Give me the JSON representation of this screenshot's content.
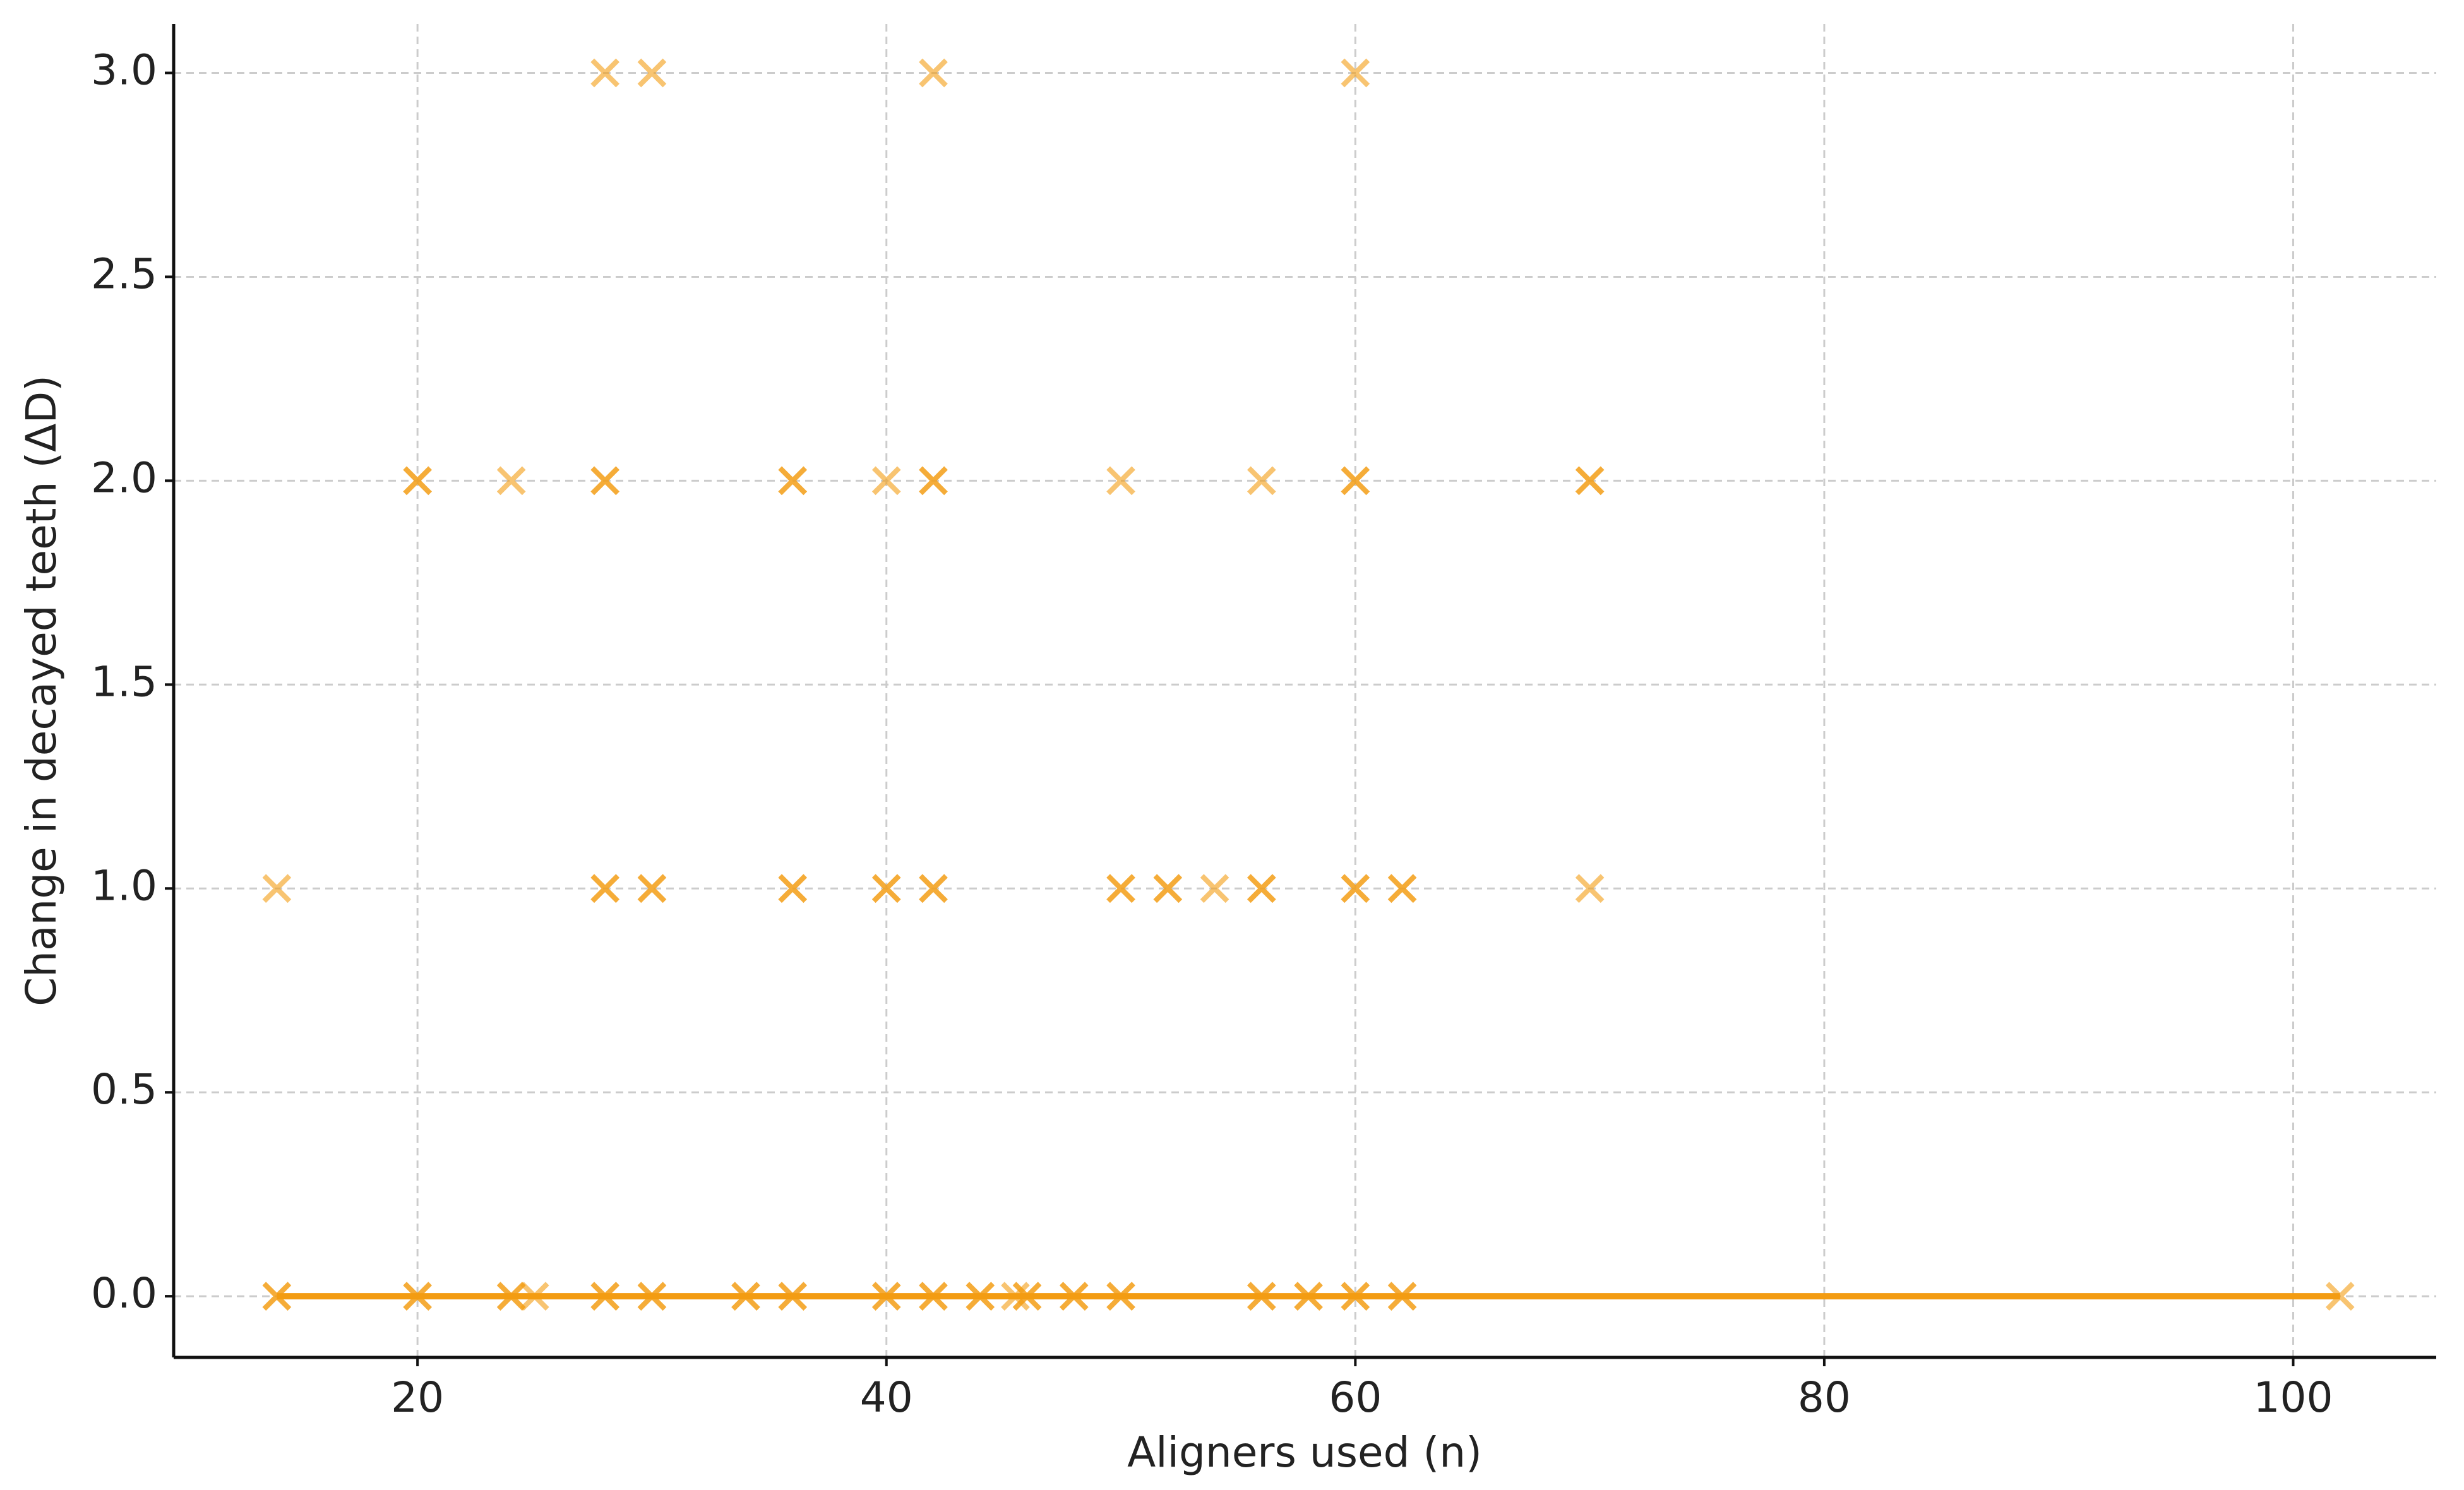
{
  "chart_data": {
    "type": "scatter",
    "xlabel": "Aligners used (n)",
    "ylabel": "Change in decayed teeth (ΔD)",
    "marker": "x",
    "color": "#f39c12",
    "alpha": 0.6,
    "x": [
      28,
      30,
      42,
      60,
      20,
      20,
      24,
      28,
      28,
      36,
      36,
      40,
      42,
      42,
      50,
      56,
      60,
      60,
      70,
      70,
      14,
      28,
      28,
      30,
      30,
      36,
      36,
      40,
      40,
      42,
      42,
      50,
      50,
      52,
      52,
      54,
      56,
      56,
      60,
      60,
      62,
      62,
      70,
      14,
      14,
      20,
      20,
      24,
      24,
      25,
      28,
      28,
      30,
      30,
      34,
      34,
      36,
      36,
      40,
      40,
      42,
      42,
      44,
      44,
      45.5,
      46,
      46,
      48,
      48,
      50,
      50,
      56,
      56,
      58,
      58,
      60,
      60,
      62,
      62,
      102
    ],
    "values": [
      3,
      3,
      3,
      3,
      2,
      2,
      2,
      2,
      2,
      2,
      2,
      2,
      2,
      2,
      2,
      2,
      2,
      2,
      2,
      2,
      1,
      1,
      1,
      1,
      1,
      1,
      1,
      1,
      1,
      1,
      1,
      1,
      1,
      1,
      1,
      1,
      1,
      1,
      1,
      1,
      1,
      1,
      1,
      0,
      0,
      0,
      0,
      0,
      0,
      0,
      0,
      0,
      0,
      0,
      0,
      0,
      0,
      0,
      0,
      0,
      0,
      0,
      0,
      0,
      0,
      0,
      0,
      0,
      0,
      0,
      0,
      0,
      0,
      0,
      0,
      0,
      0,
      0,
      0,
      0
    ],
    "fit_line": {
      "x": [
        14,
        102
      ],
      "values": [
        0,
        0
      ],
      "color": "#f39c12"
    },
    "xlim": [
      9.6,
      106.1
    ],
    "ylim": [
      -0.15,
      3.12
    ],
    "xticks": [
      20,
      40,
      60,
      80,
      100
    ],
    "yticks": [
      {
        "value": 0,
        "label": "0.0"
      },
      {
        "value": 0.5,
        "label": "0.5"
      },
      {
        "value": 1,
        "label": "1.0"
      },
      {
        "value": 1.5,
        "label": "1.5"
      },
      {
        "value": 2,
        "label": "2.0"
      },
      {
        "value": 2.5,
        "label": "2.5"
      },
      {
        "value": 3,
        "label": "3.0"
      }
    ],
    "grid": true
  }
}
